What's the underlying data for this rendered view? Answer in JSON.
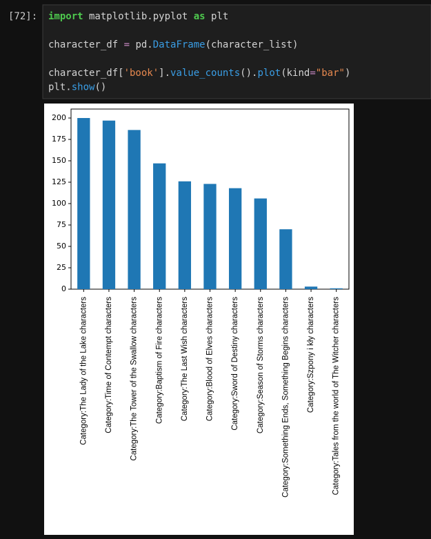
{
  "prompt": "[72]:",
  "code": [
    [
      {
        "text": "import",
        "color": "#4ec94e",
        "bold": true
      },
      {
        "text": " matplotlib.pyplot ",
        "color": "#d4d4d4"
      },
      {
        "text": "as",
        "color": "#4ec94e",
        "bold": true
      },
      {
        "text": " plt",
        "color": "#d4d4d4"
      }
    ],
    [],
    [
      {
        "text": "character_df ",
        "color": "#d4d4d4"
      },
      {
        "text": "=",
        "color": "#c586c0"
      },
      {
        "text": " pd.",
        "color": "#d4d4d4"
      },
      {
        "text": "DataFrame",
        "color": "#3a9ee6"
      },
      {
        "text": "(character_list)",
        "color": "#d4d4d4"
      }
    ],
    [],
    [
      {
        "text": "character_df[",
        "color": "#d4d4d4"
      },
      {
        "text": "'book'",
        "color": "#e8894f"
      },
      {
        "text": "].",
        "color": "#d4d4d4"
      },
      {
        "text": "value_counts",
        "color": "#3a9ee6"
      },
      {
        "text": "().",
        "color": "#d4d4d4"
      },
      {
        "text": "plot",
        "color": "#3a9ee6"
      },
      {
        "text": "(kind",
        "color": "#d4d4d4"
      },
      {
        "text": "=",
        "color": "#c586c0"
      },
      {
        "text": "\"bar\"",
        "color": "#e8894f"
      },
      {
        "text": ")",
        "color": "#d4d4d4"
      }
    ],
    [
      {
        "text": "plt.",
        "color": "#d4d4d4"
      },
      {
        "text": "show",
        "color": "#3a9ee6"
      },
      {
        "text": "()",
        "color": "#d4d4d4"
      }
    ]
  ],
  "chart_data": {
    "type": "bar",
    "categories": [
      "Category:The Lady of the Lake characters",
      "Category:Time of Contempt characters",
      "Category:The Tower of the Swallow characters",
      "Category:Baptism of Fire characters",
      "Category:The Last Wish characters",
      "Category:Blood of Elves characters",
      "Category:Sword of Destiny characters",
      "Category:Season of Storms characters",
      "Category:Something Ends, Something Begins characters",
      "Category:Szpony i kły characters",
      "Category:Tales from the world of The Witcher characters"
    ],
    "values": [
      200,
      197,
      186,
      147,
      126,
      123,
      118,
      106,
      70,
      3,
      1
    ],
    "color": "#1f77b4",
    "ylim": [
      0,
      200
    ],
    "yticks": [
      0,
      25,
      50,
      75,
      100,
      125,
      150,
      175,
      200
    ],
    "grid": false
  }
}
